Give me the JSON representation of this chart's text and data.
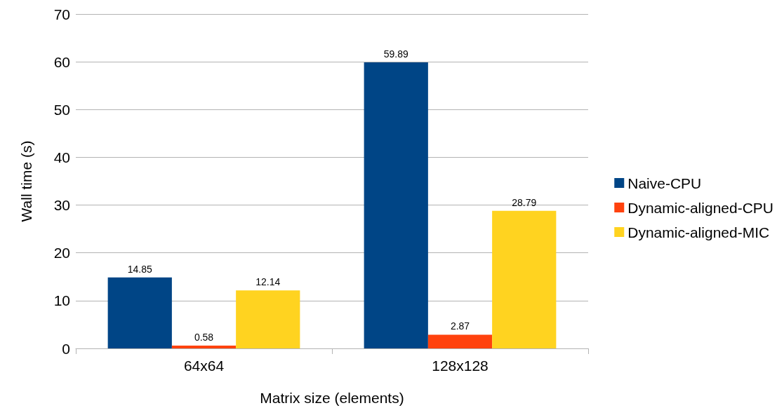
{
  "chart_data": {
    "type": "bar",
    "xlabel": "Matrix size (elements)",
    "ylabel": "Wall time (s)",
    "categories": [
      "64x64",
      "128x128"
    ],
    "series": [
      {
        "name": "Naive-CPU",
        "color": "#004586",
        "values": [
          14.85,
          59.89
        ]
      },
      {
        "name": "Dynamic-aligned-CPU",
        "color": "#ff420e",
        "values": [
          0.58,
          2.87
        ]
      },
      {
        "name": "Dynamic-aligned-MIC",
        "color": "#ffd320",
        "values": [
          12.14,
          28.79
        ]
      }
    ],
    "ylim": [
      0,
      70
    ],
    "yticks": [
      0,
      10,
      20,
      30,
      40,
      50,
      60,
      70
    ],
    "grid": "y",
    "legend": "right",
    "data_labels": true
  }
}
